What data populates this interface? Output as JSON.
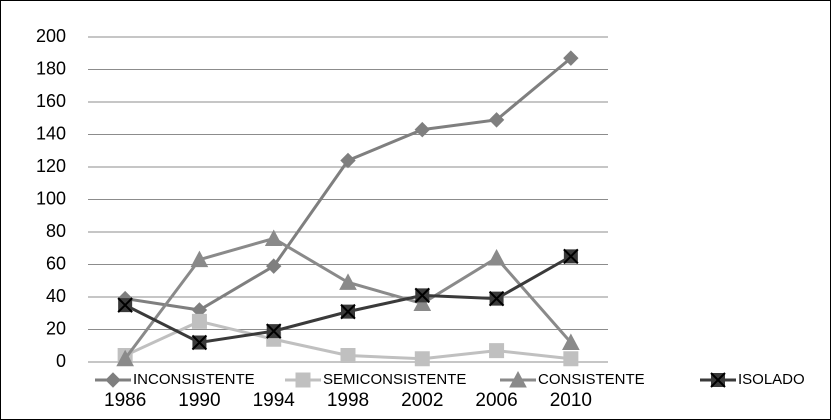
{
  "chart_data": {
    "type": "line",
    "categories": [
      "1986",
      "1990",
      "1994",
      "1998",
      "2002",
      "2006",
      "2010"
    ],
    "series": [
      {
        "name": "INCONSISTENTE",
        "color": "#7f7f7f",
        "marker": "diamond",
        "values": [
          39,
          32,
          59,
          124,
          143,
          149,
          187
        ]
      },
      {
        "name": "SEMICONSISTENTE",
        "color": "#c0c0c0",
        "marker": "square",
        "values": [
          4,
          25,
          14,
          4,
          2,
          7,
          2
        ]
      },
      {
        "name": "CONSISTENTE",
        "color": "#8a8a8a",
        "marker": "triangle",
        "values": [
          2,
          63,
          76,
          49,
          36,
          64,
          12
        ]
      },
      {
        "name": "ISOLADO",
        "color": "#3a3a3a",
        "marker": "x-square",
        "values": [
          35,
          12,
          19,
          31,
          41,
          39,
          65
        ]
      }
    ],
    "ylim": [
      0,
      200
    ],
    "yticks": [
      0,
      20,
      40,
      60,
      80,
      100,
      120,
      140,
      160,
      180,
      200
    ],
    "grid": true,
    "legend": "bottom"
  }
}
